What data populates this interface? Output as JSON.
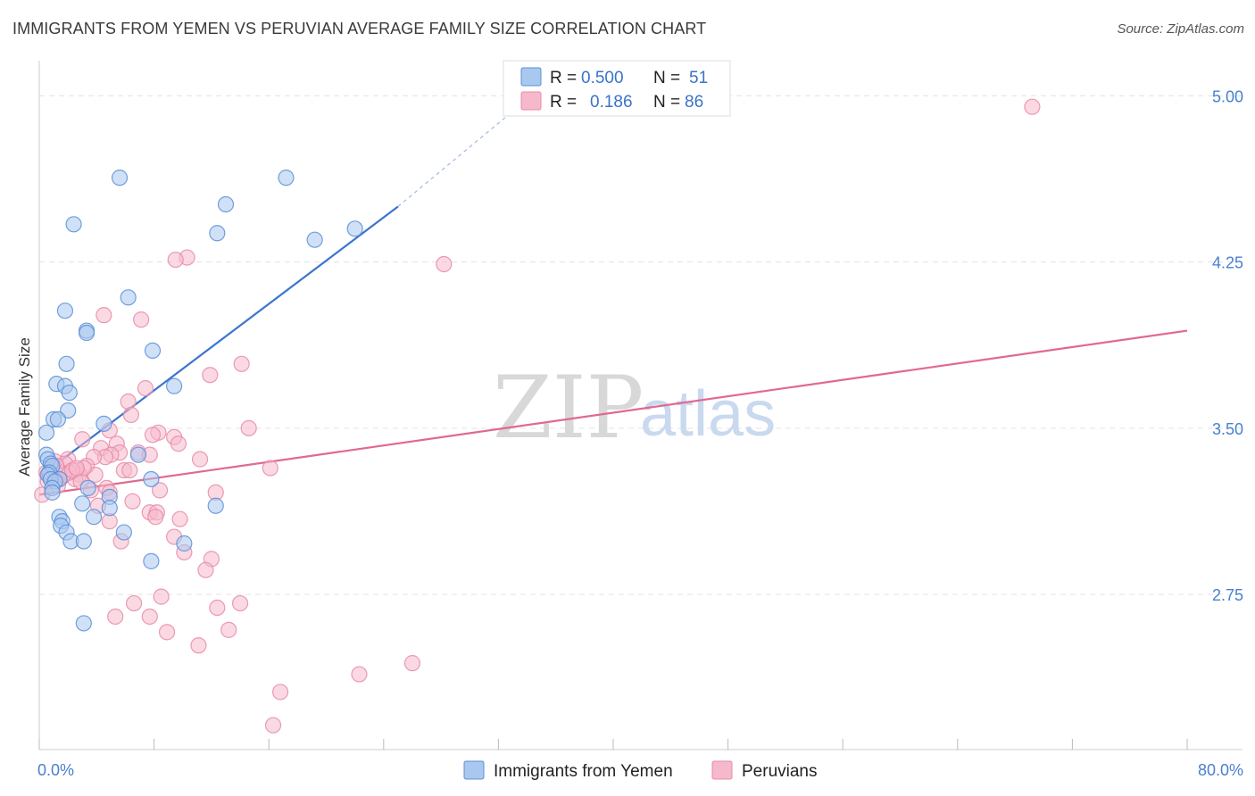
{
  "header": {
    "title": "IMMIGRANTS FROM YEMEN VS PERUVIAN AVERAGE FAMILY SIZE CORRELATION CHART",
    "source": "Source: ZipAtlas.com"
  },
  "watermark": {
    "zip": "ZIP",
    "atlas": "atlas"
  },
  "colors": {
    "yemen_fill": "#a9c8f0",
    "yemen_stroke": "#5b8fd6",
    "yemen_line": "#3a74cf",
    "peru_fill": "#f6b9cc",
    "peru_stroke": "#e88aa8",
    "peru_line": "#e0698f",
    "grid": "#e3e3e3",
    "axis_text": "#4a7fcf"
  },
  "legend": {
    "rows": [
      {
        "r_label": "R =",
        "r_value": "0.500",
        "n_label": "N =",
        "n_value": "51"
      },
      {
        "r_label": "R =",
        "r_value": "0.186",
        "n_label": "N =",
        "n_value": "86"
      }
    ]
  },
  "chart_data": {
    "type": "scatter",
    "title": "IMMIGRANTS FROM YEMEN VS PERUVIAN AVERAGE FAMILY SIZE CORRELATION CHART",
    "xlabel": "",
    "ylabel": "Average Family Size",
    "xlim": [
      0,
      80
    ],
    "ylim": [
      2.05,
      5.15
    ],
    "x_tick_labels": [
      "0.0%",
      "80.0%"
    ],
    "y_ticks": [
      2.75,
      3.5,
      4.25,
      5.0
    ],
    "y_tick_labels": [
      "2.75",
      "3.50",
      "4.25",
      "5.00"
    ],
    "grid": true,
    "legend_position": "top-center",
    "series": [
      {
        "name": "Immigrants from Yemen",
        "R": 0.5,
        "N": 51,
        "trend": {
          "x0": 0.2,
          "y0": 3.29,
          "x1": 25.0,
          "y1": 4.5,
          "dash_x1": 33.0,
          "dash_y1": 4.93
        },
        "points": [
          [
            5.6,
            4.63
          ],
          [
            17.2,
            4.63
          ],
          [
            13.0,
            4.51
          ],
          [
            2.4,
            4.42
          ],
          [
            12.4,
            4.38
          ],
          [
            19.2,
            4.35
          ],
          [
            22.0,
            4.4
          ],
          [
            6.2,
            4.09
          ],
          [
            1.8,
            4.03
          ],
          [
            3.3,
            3.94
          ],
          [
            3.3,
            3.93
          ],
          [
            7.9,
            3.85
          ],
          [
            1.9,
            3.79
          ],
          [
            1.2,
            3.7
          ],
          [
            1.8,
            3.69
          ],
          [
            2.1,
            3.66
          ],
          [
            9.4,
            3.69
          ],
          [
            2.0,
            3.58
          ],
          [
            1.0,
            3.54
          ],
          [
            1.3,
            3.54
          ],
          [
            4.5,
            3.52
          ],
          [
            0.5,
            3.48
          ],
          [
            0.5,
            3.38
          ],
          [
            0.6,
            3.36
          ],
          [
            6.9,
            3.38
          ],
          [
            0.8,
            3.34
          ],
          [
            0.9,
            3.33
          ],
          [
            0.7,
            3.3
          ],
          [
            0.6,
            3.29
          ],
          [
            1.4,
            3.27
          ],
          [
            0.8,
            3.27
          ],
          [
            7.8,
            3.27
          ],
          [
            1.1,
            3.26
          ],
          [
            0.9,
            3.23
          ],
          [
            3.4,
            3.23
          ],
          [
            0.9,
            3.21
          ],
          [
            4.9,
            3.19
          ],
          [
            3.0,
            3.16
          ],
          [
            12.3,
            3.15
          ],
          [
            4.9,
            3.14
          ],
          [
            1.4,
            3.1
          ],
          [
            3.8,
            3.1
          ],
          [
            1.6,
            3.08
          ],
          [
            1.5,
            3.06
          ],
          [
            5.9,
            3.03
          ],
          [
            1.9,
            3.03
          ],
          [
            2.2,
            2.99
          ],
          [
            3.1,
            2.99
          ],
          [
            10.1,
            2.98
          ],
          [
            7.8,
            2.9
          ],
          [
            3.1,
            2.62
          ]
        ]
      },
      {
        "name": "Peruvians",
        "R": 0.186,
        "N": 86,
        "trend": {
          "x0": 0.0,
          "y0": 3.2,
          "x1": 80.0,
          "y1": 3.94
        },
        "points": [
          [
            69.2,
            4.95
          ],
          [
            10.3,
            4.27
          ],
          [
            9.5,
            4.26
          ],
          [
            28.2,
            4.24
          ],
          [
            4.5,
            4.01
          ],
          [
            7.1,
            3.99
          ],
          [
            14.1,
            3.79
          ],
          [
            11.9,
            3.74
          ],
          [
            7.4,
            3.68
          ],
          [
            6.2,
            3.62
          ],
          [
            6.4,
            3.56
          ],
          [
            14.6,
            3.5
          ],
          [
            4.9,
            3.49
          ],
          [
            8.3,
            3.48
          ],
          [
            7.9,
            3.47
          ],
          [
            9.4,
            3.46
          ],
          [
            9.7,
            3.43
          ],
          [
            3.0,
            3.45
          ],
          [
            5.4,
            3.43
          ],
          [
            4.3,
            3.41
          ],
          [
            6.9,
            3.39
          ],
          [
            5.6,
            3.39
          ],
          [
            5.0,
            3.38
          ],
          [
            4.6,
            3.37
          ],
          [
            7.7,
            3.38
          ],
          [
            3.8,
            3.37
          ],
          [
            2.0,
            3.36
          ],
          [
            1.1,
            3.35
          ],
          [
            1.8,
            3.34
          ],
          [
            11.2,
            3.36
          ],
          [
            16.1,
            3.32
          ],
          [
            3.3,
            3.33
          ],
          [
            5.9,
            3.31
          ],
          [
            6.3,
            3.31
          ],
          [
            2.6,
            3.31
          ],
          [
            1.5,
            3.3
          ],
          [
            3.9,
            3.29
          ],
          [
            2.8,
            3.29
          ],
          [
            0.8,
            3.28
          ],
          [
            2.5,
            3.27
          ],
          [
            1.6,
            3.28
          ],
          [
            2.9,
            3.26
          ],
          [
            1.1,
            3.27
          ],
          [
            0.6,
            3.26
          ],
          [
            1.3,
            3.24
          ],
          [
            0.2,
            3.2
          ],
          [
            4.7,
            3.23
          ],
          [
            3.6,
            3.22
          ],
          [
            8.4,
            3.22
          ],
          [
            12.3,
            3.21
          ],
          [
            4.9,
            3.21
          ],
          [
            6.5,
            3.17
          ],
          [
            4.1,
            3.15
          ],
          [
            7.7,
            3.12
          ],
          [
            8.2,
            3.12
          ],
          [
            8.1,
            3.1
          ],
          [
            9.8,
            3.09
          ],
          [
            4.9,
            3.08
          ],
          [
            9.4,
            3.01
          ],
          [
            5.7,
            2.99
          ],
          [
            10.1,
            2.94
          ],
          [
            12.0,
            2.91
          ],
          [
            11.6,
            2.86
          ],
          [
            8.5,
            2.74
          ],
          [
            6.6,
            2.71
          ],
          [
            14.0,
            2.71
          ],
          [
            12.4,
            2.69
          ],
          [
            7.7,
            2.65
          ],
          [
            5.3,
            2.65
          ],
          [
            8.9,
            2.58
          ],
          [
            13.2,
            2.59
          ],
          [
            11.1,
            2.52
          ],
          [
            26.0,
            2.44
          ],
          [
            22.3,
            2.39
          ],
          [
            16.8,
            2.31
          ],
          [
            16.3,
            2.16
          ],
          [
            1.4,
            3.29
          ],
          [
            2.1,
            3.3
          ],
          [
            0.9,
            3.31
          ],
          [
            3.1,
            3.32
          ],
          [
            1.7,
            3.29
          ],
          [
            0.5,
            3.3
          ],
          [
            2.3,
            3.31
          ],
          [
            1.2,
            3.33
          ],
          [
            0.7,
            3.29
          ],
          [
            2.6,
            3.32
          ]
        ]
      }
    ]
  },
  "bottom_legend": {
    "items": [
      {
        "label": "Immigrants from Yemen"
      },
      {
        "label": "Peruvians"
      }
    ]
  }
}
